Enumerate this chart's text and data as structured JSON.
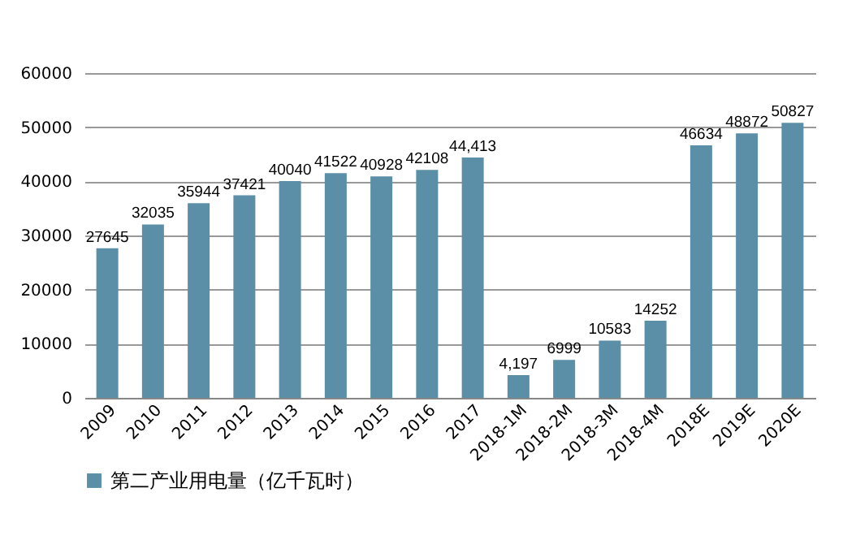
{
  "chart_data": {
    "type": "bar",
    "categories": [
      "2009",
      "2010",
      "2011",
      "2012",
      "2013",
      "2014",
      "2015",
      "2016",
      "2017",
      "2018-1M",
      "2018-2M",
      "2018-3M",
      "2018-4M",
      "2018E",
      "2019E",
      "2020E"
    ],
    "series": [
      {
        "name": "第二产业用电量（亿千瓦时）",
        "color": "#5b8fa8",
        "values": [
          27645,
          32035,
          35944,
          37421,
          40040,
          41522,
          40928,
          42108,
          44413,
          4197,
          6999,
          10583,
          14252,
          46634,
          48872,
          50827
        ],
        "value_labels": [
          "27645",
          "32035",
          "35944",
          "37421",
          "40040",
          "41522",
          "40928",
          "42108",
          "44,413",
          "4,197",
          "6999",
          "10583",
          "14252",
          "46634",
          "48872",
          "50827"
        ]
      }
    ],
    "ylim": [
      0,
      60000
    ],
    "yticks": [
      0,
      10000,
      20000,
      30000,
      40000,
      50000,
      60000
    ],
    "grid": "y",
    "legend": "bottom"
  }
}
